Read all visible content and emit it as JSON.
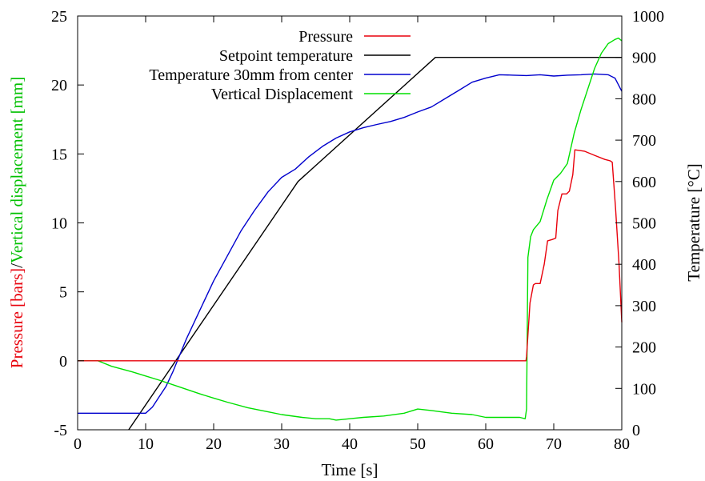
{
  "chart_data": {
    "type": "line",
    "xlabel": "Time [s]",
    "ylabel_left": {
      "part1": "Pressure [bars]",
      "sep": "/",
      "part2": "Vertical displacement [mm]"
    },
    "ylabel_right": "Temperature [°C]",
    "xlim": [
      0,
      80
    ],
    "ylim_left": [
      -5,
      25
    ],
    "ylim_right": [
      0,
      1000
    ],
    "xticks": [
      "0",
      "10",
      "20",
      "30",
      "40",
      "50",
      "60",
      "70",
      "80"
    ],
    "yticks_left": [
      "-5",
      "0",
      "5",
      "10",
      "15",
      "20",
      "25"
    ],
    "yticks_right": [
      "0",
      "100",
      "200",
      "300",
      "400",
      "500",
      "600",
      "700",
      "800",
      "900",
      "1000"
    ],
    "grid": false,
    "legend_position": "top-center",
    "series": [
      {
        "name": "Pressure",
        "color": "#e8000b",
        "axis": "left",
        "x": [
          0,
          65.9,
          66.0,
          66.5,
          67.0,
          67.3,
          68.0,
          68.6,
          69.1,
          69.8,
          70.3,
          70.6,
          71.2,
          71.9,
          72.3,
          72.8,
          73.1,
          74.5,
          76.0,
          77.5,
          78.3,
          78.6,
          79.1,
          79.6,
          80.0
        ],
        "y": [
          0,
          0,
          0.3,
          4.2,
          5.5,
          5.6,
          5.6,
          7.0,
          8.7,
          8.8,
          8.9,
          10.9,
          12.1,
          12.1,
          12.3,
          13.5,
          15.3,
          15.2,
          14.9,
          14.6,
          14.5,
          14.4,
          11.0,
          7.0,
          2.8
        ]
      },
      {
        "name": "Setpoint temperature",
        "color": "#000000",
        "axis": "right",
        "x": [
          7.5,
          32.4,
          52.6,
          80
        ],
        "y": [
          0,
          600,
          900,
          900
        ]
      },
      {
        "name": "Temperature 30mm from center",
        "color": "#0000cd",
        "axis": "right",
        "x": [
          0,
          10,
          11,
          12,
          13,
          14,
          15,
          16,
          18,
          20,
          22,
          24,
          26,
          28,
          30,
          32,
          34,
          36,
          38,
          40,
          42,
          44,
          46,
          48,
          50,
          52,
          54,
          56,
          58,
          60,
          62,
          64,
          66,
          68,
          70,
          72,
          74,
          76,
          78,
          79,
          80
        ],
        "y": [
          40,
          40,
          55,
          80,
          105,
          140,
          180,
          220,
          290,
          360,
          420,
          480,
          530,
          575,
          610,
          630,
          660,
          685,
          705,
          720,
          730,
          738,
          745,
          755,
          768,
          780,
          800,
          820,
          840,
          850,
          858,
          857,
          856,
          858,
          855,
          857,
          858,
          860,
          858,
          850,
          818
        ]
      },
      {
        "name": "Vertical Displacement",
        "color": "#00e000",
        "axis": "left",
        "x": [
          0,
          3,
          5,
          8,
          10,
          12,
          15,
          18,
          20,
          22,
          25,
          28,
          30,
          33,
          35,
          37,
          38,
          40,
          42,
          45,
          48,
          50,
          52,
          55,
          58,
          60,
          63,
          65,
          65.8,
          66.0,
          66.2,
          66.6,
          67.0,
          68.0,
          69.0,
          70.0,
          71.0,
          72.0,
          73.0,
          74.0,
          75.0,
          76.0,
          77.0,
          78.0,
          79.0,
          79.5,
          80.0
        ],
        "y": [
          0,
          0,
          -0.4,
          -0.8,
          -1.1,
          -1.4,
          -1.9,
          -2.4,
          -2.7,
          -3.0,
          -3.4,
          -3.7,
          -3.9,
          -4.1,
          -4.2,
          -4.2,
          -4.3,
          -4.2,
          -4.1,
          -4.0,
          -3.8,
          -3.5,
          -3.6,
          -3.8,
          -3.9,
          -4.1,
          -4.1,
          -4.1,
          -4.2,
          -3.5,
          7.5,
          9.0,
          9.5,
          10.1,
          11.7,
          13.1,
          13.6,
          14.3,
          16.5,
          18.2,
          19.7,
          21.2,
          22.3,
          23.0,
          23.3,
          23.4,
          23.2
        ]
      }
    ]
  }
}
